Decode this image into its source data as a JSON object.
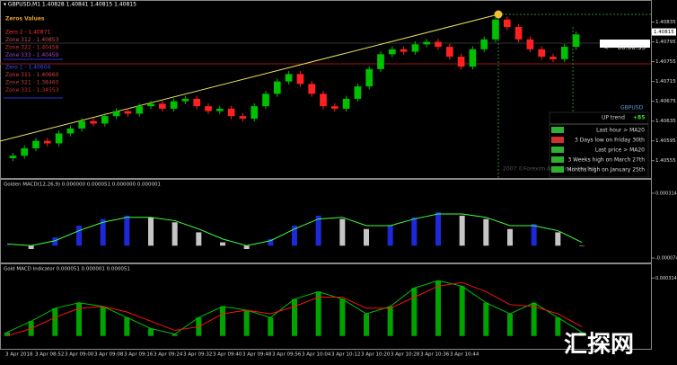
{
  "header": "▾ GBPUSD,M1  1.40828 1.40841 1.40815 1.40815",
  "zones": {
    "title": "Zeros Values",
    "upper": [
      "Zero 2 - 1.40871",
      "Zone 312 - 1.40853",
      "Zone 322 - 1.40458",
      "Zone 333 - 1.40459"
    ],
    "lower": [
      "Zero 1 - 1.40604",
      "Zone 311 - 1.40660",
      "Zone 321 - 1.38460",
      "Zone 331 - 1.34553"
    ]
  },
  "timer": "<--- 00:00:35",
  "info": {
    "symbol": "GBPUSD",
    "trend": "UP trend",
    "score": "+85",
    "rows": [
      "Last hour > MA20",
      "3 Days low on Friday 30th",
      "Last price > MA20",
      "3 Weeks high on March 27th",
      "Months high on January 25th"
    ]
  },
  "copyright": "2007 ©Forexim Anatolir Unlimited",
  "time_axis": [
    "3 Apr 2018",
    "3 Apr 08:52",
    "3 Apr 09:00",
    "3 Apr 09:08",
    "3 Apr 09:16",
    "3 Apr 09:24",
    "3 Apr 09:32",
    "3 Apr 09:40",
    "3 Apr 09:48",
    "3 Apr 09:56",
    "3 Apr 10:04",
    "3 Apr 10:12",
    "3 Apr 10:20",
    "3 Apr 10:28",
    "3 Apr 10:36",
    "3 Apr 10:44"
  ],
  "watermark": "汇探网",
  "chart_data": [
    {
      "type": "candlestick",
      "up_color": "#00c000",
      "down_color": "#ff2020",
      "open": [
        1.4056,
        1.40565,
        1.4058,
        1.40595,
        1.4059,
        1.4061,
        1.4062,
        1.40635,
        1.4063,
        1.40645,
        1.40655,
        1.4065,
        1.40665,
        1.4067,
        1.4066,
        1.40675,
        1.4068,
        1.40665,
        1.40655,
        1.4066,
        1.40645,
        1.4064,
        1.40665,
        1.4069,
        1.40715,
        1.4073,
        1.4071,
        1.4069,
        1.40665,
        1.4066,
        1.4068,
        1.40705,
        1.4074,
        1.4077,
        1.4078,
        1.40775,
        1.4079,
        1.40795,
        1.40785,
        1.40765,
        1.40745,
        1.4078,
        1.408,
        1.4084,
        1.40825,
        1.408,
        1.4078,
        1.40765,
        1.4076,
        1.40785
      ],
      "high": [
        1.40571,
        1.40586,
        1.40601,
        1.40601,
        1.40616,
        1.40626,
        1.40641,
        1.40641,
        1.40651,
        1.40661,
        1.40661,
        1.40671,
        1.40676,
        1.40676,
        1.40681,
        1.40686,
        1.40686,
        1.40671,
        1.40666,
        1.40666,
        1.40651,
        1.40671,
        1.40696,
        1.40721,
        1.40736,
        1.40736,
        1.40716,
        1.40696,
        1.40671,
        1.40686,
        1.40711,
        1.40746,
        1.40776,
        1.40786,
        1.40786,
        1.40796,
        1.40801,
        1.40801,
        1.40791,
        1.40771,
        1.40786,
        1.40806,
        1.40846,
        1.40846,
        1.40831,
        1.40806,
        1.40786,
        1.40771,
        1.40791,
        1.40816
      ],
      "low": [
        1.40554,
        1.40559,
        1.40574,
        1.40584,
        1.40584,
        1.40604,
        1.40614,
        1.40624,
        1.40624,
        1.40639,
        1.40644,
        1.40644,
        1.40659,
        1.40654,
        1.40654,
        1.40669,
        1.40659,
        1.40649,
        1.40649,
        1.40639,
        1.40634,
        1.40634,
        1.40659,
        1.40684,
        1.40709,
        1.40704,
        1.40684,
        1.40659,
        1.40654,
        1.40654,
        1.40674,
        1.40699,
        1.40734,
        1.40764,
        1.40769,
        1.40769,
        1.40784,
        1.40779,
        1.40759,
        1.40739,
        1.40739,
        1.40774,
        1.40794,
        1.40819,
        1.40794,
        1.40774,
        1.40759,
        1.40754,
        1.40754,
        1.40779
      ],
      "close": [
        1.40565,
        1.4058,
        1.40595,
        1.4059,
        1.4061,
        1.4062,
        1.40635,
        1.4063,
        1.40645,
        1.40655,
        1.4065,
        1.40665,
        1.4067,
        1.4066,
        1.40675,
        1.4068,
        1.40665,
        1.40655,
        1.4066,
        1.40645,
        1.4064,
        1.40665,
        1.4069,
        1.40715,
        1.4073,
        1.4071,
        1.4069,
        1.40665,
        1.4066,
        1.4068,
        1.40705,
        1.4074,
        1.4077,
        1.4078,
        1.40775,
        1.4079,
        1.40795,
        1.40785,
        1.40765,
        1.40745,
        1.4078,
        1.408,
        1.4084,
        1.40825,
        1.408,
        1.4078,
        1.40765,
        1.4076,
        1.40785,
        1.4081
      ],
      "ylim": [
        1.4052,
        1.40865
      ],
      "yticks": [
        1.40835,
        1.40795,
        1.40755,
        1.40715,
        1.40675,
        1.40635,
        1.40595,
        1.40555
      ],
      "current_price": 1.40815
    },
    {
      "type": "macd",
      "title": "Golden MACD(12,26,9) 0.000000 0.000051 0.000000 0.000001",
      "ylim": [
        -9e-05,
        0.00033
      ],
      "yticks": [
        0.000314,
        -7.4e-05
      ],
      "series": [
        {
          "color": "#2030ff",
          "values": [
            0,
            -2e-05,
            5e-05,
            0.00012,
            0.00016,
            0.00018,
            0.00017,
            0.00014,
            8e-05,
            2e-05,
            -2e-05,
            4e-05,
            0.00012,
            0.00018,
            0.00016,
            0.0001,
            0.00012,
            0.00017,
            0.0002,
            0.00018,
            0.00016,
            0.0001,
            0.00013,
            8e-05,
            0
          ]
        },
        {
          "color": "#40ff40",
          "values": [
            1e-05,
            0,
            3e-05,
            9e-05,
            0.00014,
            0.00017,
            0.00017,
            0.00015,
            0.0001,
            4e-05,
            0,
            3e-05,
            0.0001,
            0.00016,
            0.00017,
            0.00012,
            0.00012,
            0.00016,
            0.00019,
            0.00019,
            0.00017,
            0.00012,
            0.00012,
            9e-05,
            2e-05
          ]
        }
      ]
    },
    {
      "type": "macd",
      "title": "Gold MACD Indicator 0.000051 0.000001 0.000051",
      "ylim": [
        -6e-05,
        0.00033
      ],
      "yticks": [
        0.000314
      ],
      "series": [
        {
          "color": "#00c000",
          "values": [
            2e-05,
            8e-05,
            0.00015,
            0.00018,
            0.00016,
            0.0001,
            4e-05,
            1e-05,
            0.0001,
            0.00016,
            0.00014,
            0.0001,
            0.0002,
            0.00024,
            0.0002,
            0.00012,
            0.00016,
            0.00026,
            0.0003,
            0.00027,
            0.00018,
            0.00012,
            0.00018,
            0.0001,
            2e-05
          ]
        },
        {
          "color": "#ff1010",
          "values": [
            0,
            4e-05,
            0.0001,
            0.00015,
            0.00016,
            0.00013,
            8e-05,
            3e-05,
            5e-05,
            0.00012,
            0.00014,
            0.00012,
            0.00016,
            0.00021,
            0.00021,
            0.00015,
            0.00015,
            0.00021,
            0.00027,
            0.00029,
            0.00024,
            0.00017,
            0.00016,
            0.00012,
            5e-05
          ]
        }
      ]
    }
  ]
}
